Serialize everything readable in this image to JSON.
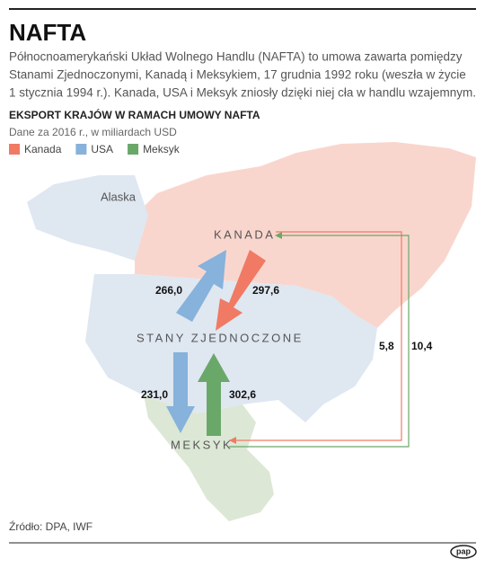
{
  "header": {
    "title": "NAFTA",
    "description": [
      "Północnoamerykański Układ Wolnego Handlu (NAFTA) to umowa zawarta pomiędzy",
      "Stanami Zjednoczonymi, Kanadą i Meksykiem, 17 grudnia 1992 roku (weszła w życie",
      "1 stycznia 1994 r.). Kanada, USA i Meksyk zniosły dzięki niej cła w handlu wzajemnym."
    ]
  },
  "section_title": "EKSPORT KRAJÓW W RAMACH UMOWY NAFTA",
  "subtitle": "Dane za 2016 r., w miliardach USD",
  "legend": [
    {
      "name": "Kanada",
      "color": "#f07a64",
      "exports": [
        "297,6",
        "5,8"
      ]
    },
    {
      "name": "USA",
      "color": "#86b2db",
      "exports": [
        "266,0",
        "231,0"
      ]
    },
    {
      "name": "Meksyk",
      "color": "#6aa86a",
      "exports": [
        "302,6",
        "10,4"
      ]
    }
  ],
  "map_labels": {
    "alaska": "Alaska",
    "canada": "KANADA",
    "usa": "STANY ZJEDNOCZONE",
    "mexico": "MEKSYK"
  },
  "source": "Źródło: DPA, IWF",
  "logo": "pap"
}
